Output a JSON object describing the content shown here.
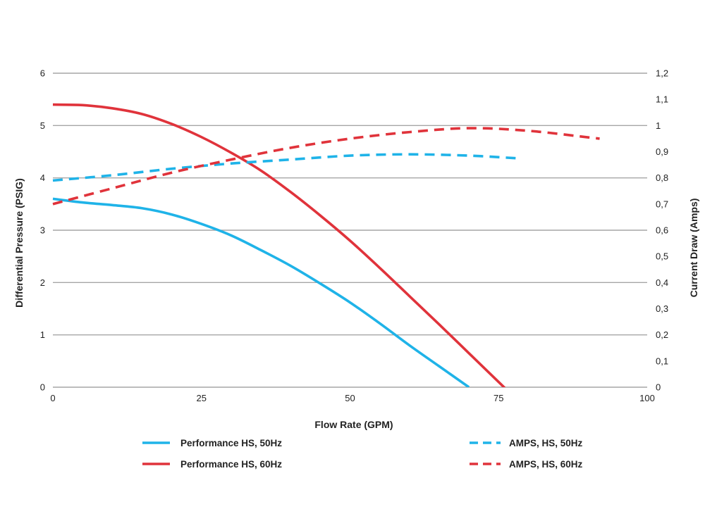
{
  "chart_data": {
    "type": "line",
    "xlabel": "Flow Rate (GPM)",
    "ylabel": "Differential Pressure (PSIG)",
    "y2label": "Current Draw (Amps)",
    "xlim": [
      0,
      100
    ],
    "ylim": [
      0,
      6
    ],
    "y2lim": [
      0,
      1.2
    ],
    "x_ticks": [
      "0",
      "25",
      "50",
      "75",
      "100"
    ],
    "y_ticks": [
      "0",
      "1",
      "2",
      "3",
      "4",
      "5",
      "6"
    ],
    "y2_ticks": [
      "0",
      "0,1",
      "0,2",
      "0,3",
      "0,4",
      "0,5",
      "0,6",
      "0,7",
      "0,8",
      "0,9",
      "1",
      "1,1",
      "1,2"
    ],
    "grid": true,
    "legend_position": "bottom",
    "series": [
      {
        "name": "Performance HS, 50Hz",
        "axis": "left",
        "color": "#1fb3e8",
        "style": "solid",
        "points": [
          [
            0,
            3.6
          ],
          [
            5,
            3.53
          ],
          [
            10,
            3.48
          ],
          [
            15,
            3.42
          ],
          [
            20,
            3.3
          ],
          [
            25,
            3.12
          ],
          [
            30,
            2.9
          ],
          [
            35,
            2.62
          ],
          [
            40,
            2.32
          ],
          [
            45,
            1.98
          ],
          [
            50,
            1.62
          ],
          [
            55,
            1.22
          ],
          [
            60,
            0.8
          ],
          [
            65,
            0.4
          ],
          [
            70,
            0
          ]
        ]
      },
      {
        "name": "Performance HS, 60Hz",
        "axis": "left",
        "color": "#e0333b",
        "style": "solid",
        "points": [
          [
            0,
            5.4
          ],
          [
            5,
            5.39
          ],
          [
            10,
            5.33
          ],
          [
            15,
            5.22
          ],
          [
            20,
            5.03
          ],
          [
            25,
            4.78
          ],
          [
            30,
            4.48
          ],
          [
            35,
            4.14
          ],
          [
            40,
            3.73
          ],
          [
            45,
            3.28
          ],
          [
            50,
            2.8
          ],
          [
            55,
            2.28
          ],
          [
            60,
            1.74
          ],
          [
            65,
            1.2
          ],
          [
            70,
            0.65
          ],
          [
            75,
            0.1
          ],
          [
            80,
            -0.45
          ]
        ]
      },
      {
        "name": "AMPS, HS, 50Hz",
        "axis": "right",
        "color": "#1fb3e8",
        "style": "dashed",
        "points": [
          [
            0,
            0.79
          ],
          [
            10,
            0.81
          ],
          [
            20,
            0.835
          ],
          [
            30,
            0.855
          ],
          [
            40,
            0.87
          ],
          [
            50,
            0.885
          ],
          [
            60,
            0.89
          ],
          [
            70,
            0.885
          ],
          [
            78,
            0.875
          ]
        ]
      },
      {
        "name": "AMPS, HS, 60Hz",
        "axis": "right",
        "color": "#e0333b",
        "style": "dashed",
        "points": [
          [
            0,
            0.7
          ],
          [
            10,
            0.76
          ],
          [
            20,
            0.82
          ],
          [
            30,
            0.87
          ],
          [
            40,
            0.915
          ],
          [
            50,
            0.95
          ],
          [
            60,
            0.975
          ],
          [
            70,
            0.99
          ],
          [
            80,
            0.98
          ],
          [
            90,
            0.955
          ],
          [
            92,
            0.95
          ]
        ]
      }
    ]
  }
}
